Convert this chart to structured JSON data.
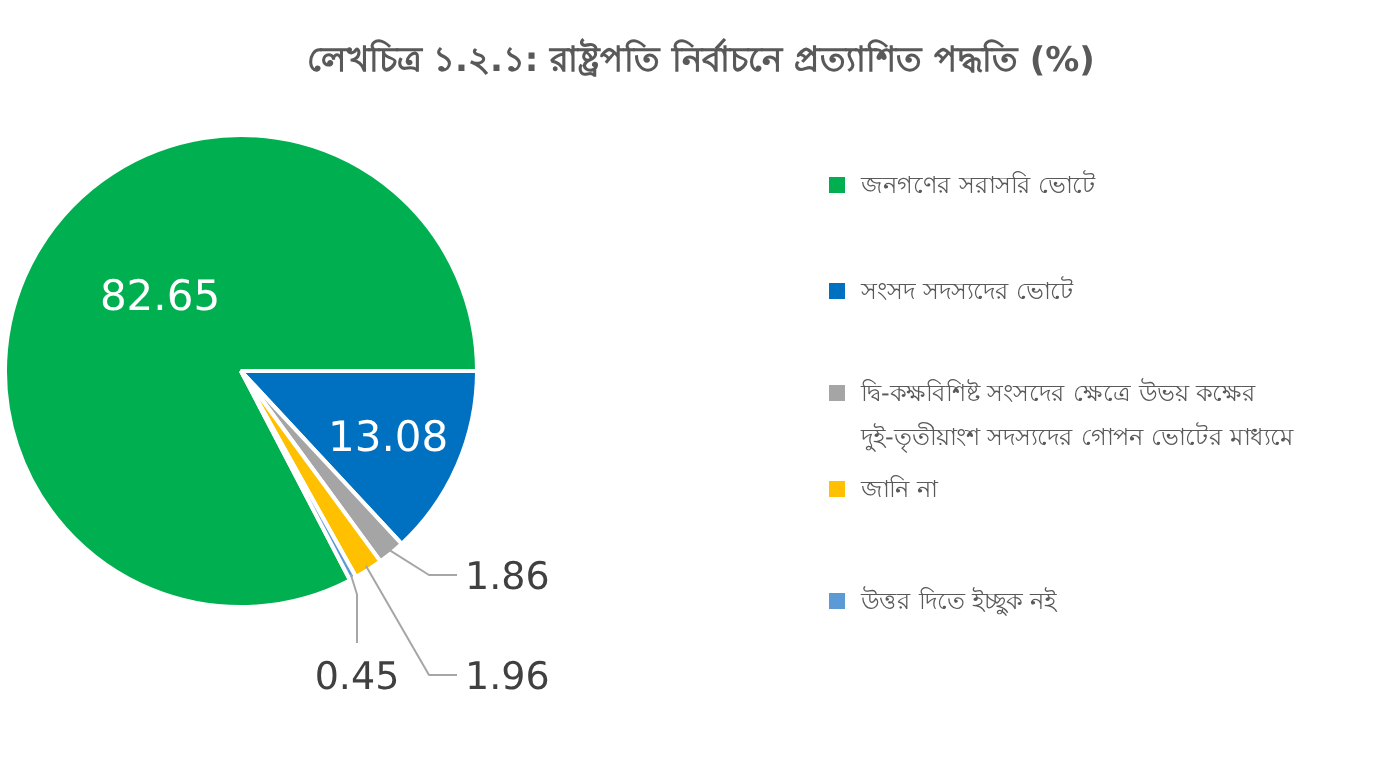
{
  "chart_data": {
    "type": "pie",
    "title": "লেখচিত্র ১.২.১: রাষ্ট্রপতি নির্বাচনে প্রত্যাশিত পদ্ধতি (%)",
    "categories": [
      "জনগণের সরাসরি ভোটে",
      "সংসদ সদস্যদের ভোটে",
      "দ্বি-কক্ষবিশিষ্ট সংসদের ক্ষেত্রে উভয় কক্ষের দুই-তৃতীয়াংশ সদস্যদের গোপন ভোটের মাধ্যমে",
      "জানি না",
      "উত্তর দিতে ইচ্ছুক নই"
    ],
    "values": [
      82.65,
      13.08,
      1.86,
      1.96,
      0.45
    ],
    "colors": [
      "#00b050",
      "#0070c0",
      "#a5a5a5",
      "#ffc000",
      "#5b9bd5"
    ],
    "data_labels": true,
    "legend": "right"
  }
}
